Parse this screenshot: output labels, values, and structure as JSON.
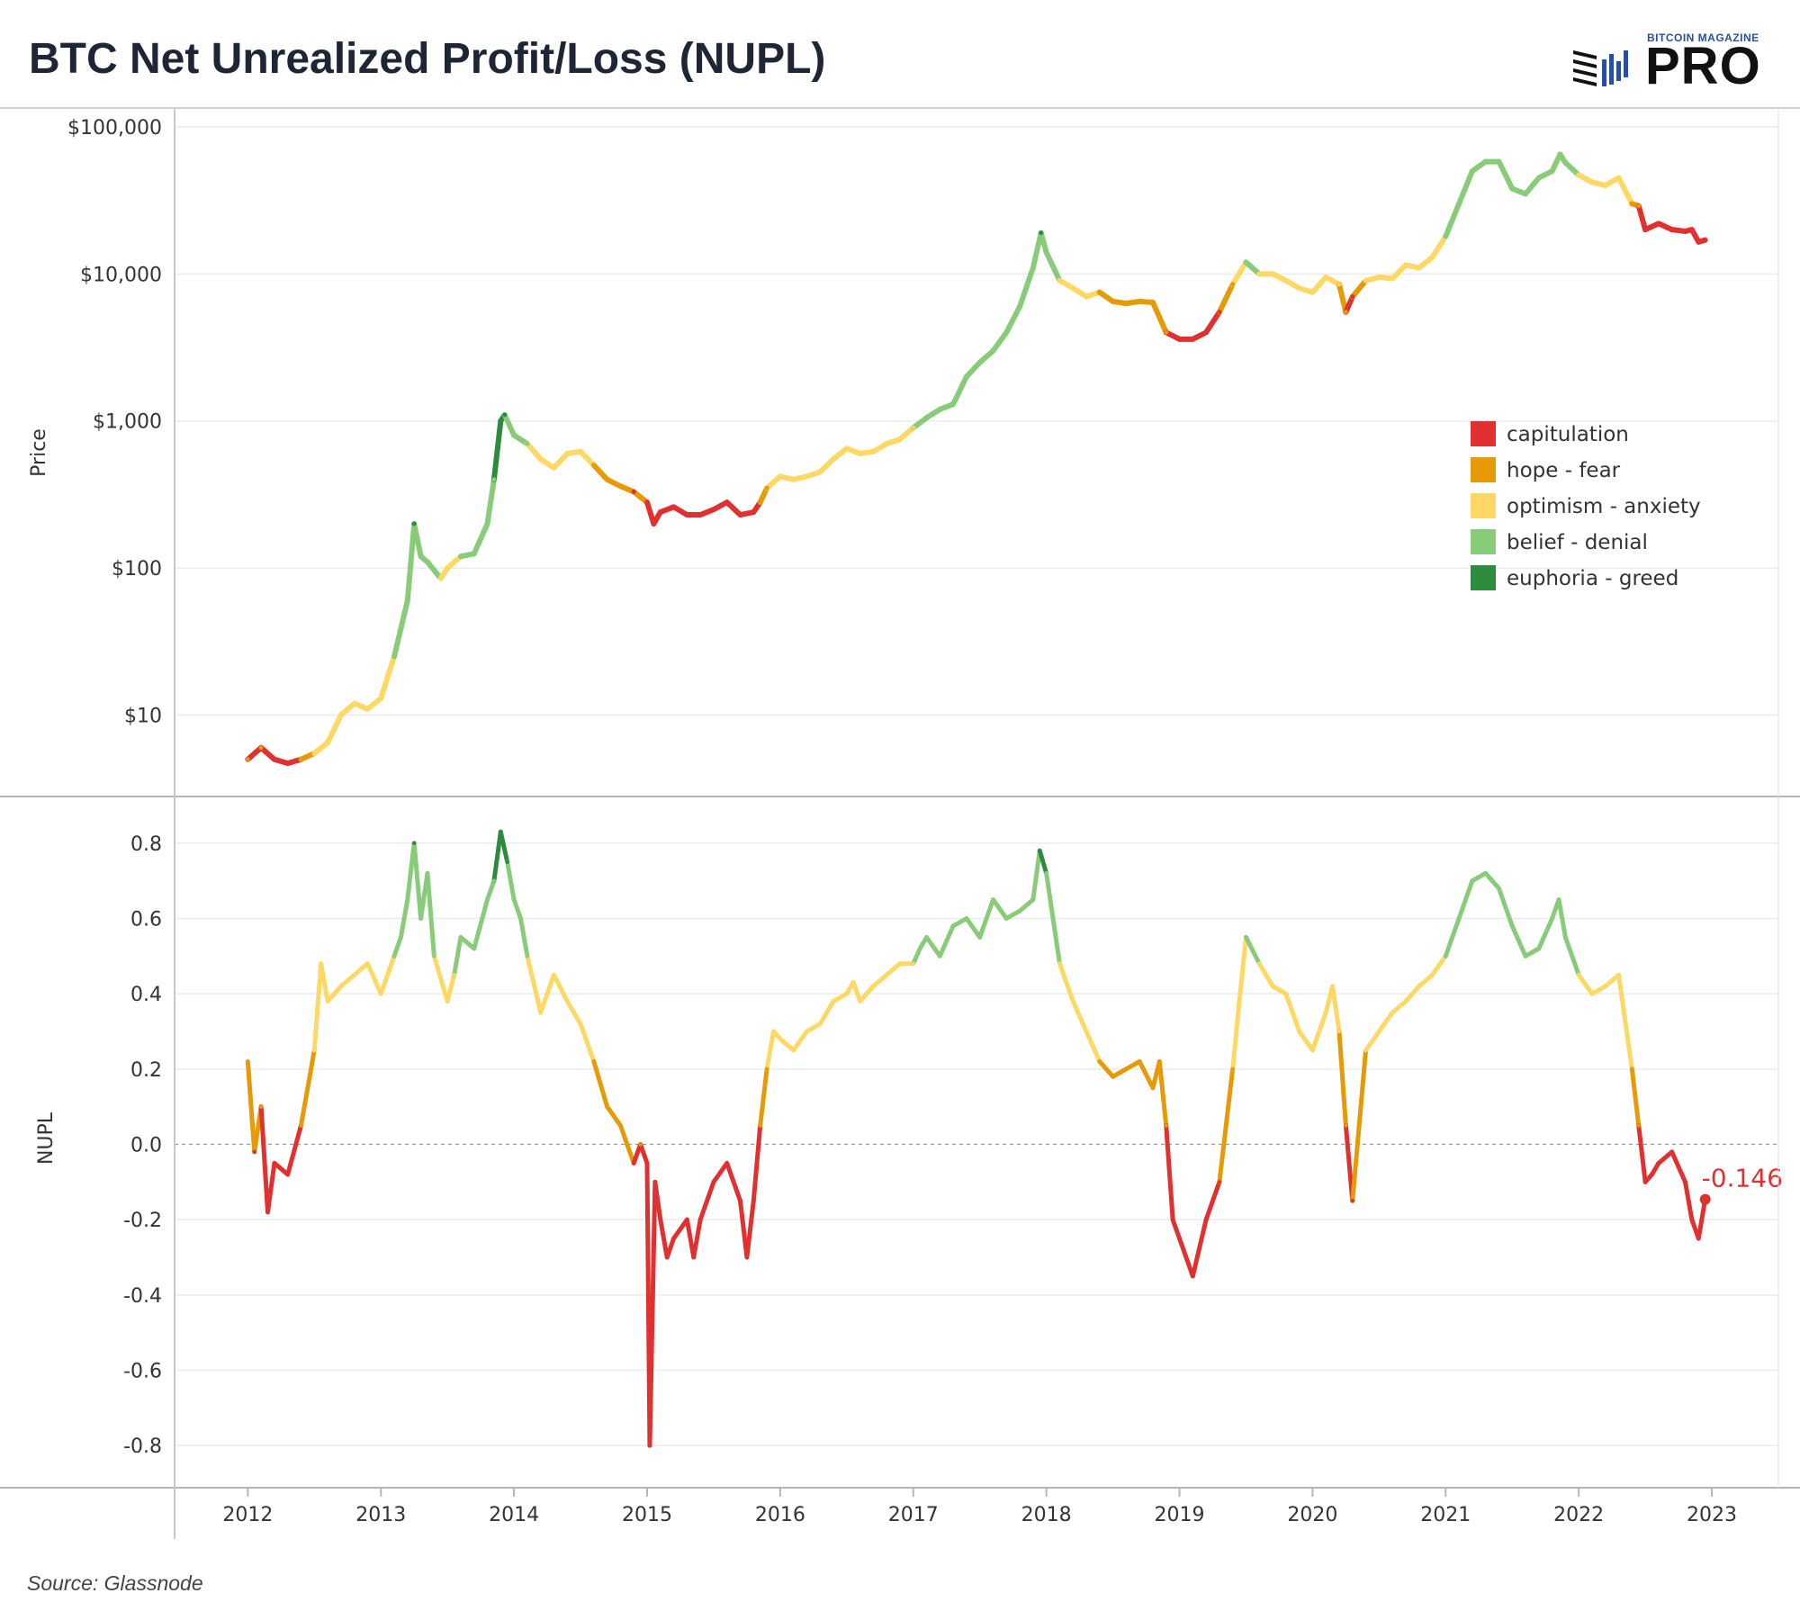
{
  "title": "BTC Net Unrealized Profit/Loss (NUPL)",
  "logo": {
    "small": "BITCOIN MAGAZINE",
    "big": "PRO"
  },
  "source": "Source: Glassnode",
  "colors": {
    "capitulation": "#e03030",
    "hope-fear": "#e59a06",
    "optimism-anxiety": "#fdd865",
    "belief-denial": "#88cc7a",
    "euphoria-greed": "#2e8b3e"
  },
  "chart_data": [
    {
      "type": "line",
      "ylabel": "Price",
      "yscale": "log",
      "ylim": [
        3,
        120000
      ],
      "y_ticks": [
        10,
        100,
        1000,
        10000,
        100000
      ],
      "y_tick_labels": [
        "$10",
        "$100",
        "$1,000",
        "$10,000",
        "$100,000"
      ],
      "legend_position": "right",
      "legend": [
        "capitulation",
        "hope - fear",
        "optimism - anxiety",
        "belief - denial",
        "euphoria - greed"
      ],
      "x_ticks": [
        "2012",
        "2013",
        "2014",
        "2015",
        "2016",
        "2017",
        "2018",
        "2019",
        "2020",
        "2021",
        "2022",
        "2023"
      ],
      "series": [
        {
          "x": [
            2012.0,
            2012.1,
            2012.2,
            2012.3,
            2012.4,
            2012.5,
            2012.6,
            2012.7,
            2012.8,
            2012.9,
            2013.0,
            2013.1,
            2013.2,
            2013.25,
            2013.3,
            2013.35,
            2013.45,
            2013.5,
            2013.6,
            2013.7,
            2013.8,
            2013.85,
            2013.9,
            2013.93,
            2014.0,
            2014.1,
            2014.2,
            2014.3,
            2014.4,
            2014.5,
            2014.6,
            2014.7,
            2014.8,
            2014.9,
            2015.0,
            2015.05,
            2015.1,
            2015.2,
            2015.3,
            2015.4,
            2015.5,
            2015.6,
            2015.7,
            2015.8,
            2015.85,
            2015.9,
            2016.0,
            2016.1,
            2016.2,
            2016.3,
            2016.4,
            2016.5,
            2016.6,
            2016.7,
            2016.8,
            2016.9,
            2017.0,
            2017.1,
            2017.2,
            2017.3,
            2017.4,
            2017.5,
            2017.6,
            2017.7,
            2017.8,
            2017.9,
            2017.96,
            2018.0,
            2018.1,
            2018.2,
            2018.3,
            2018.4,
            2018.5,
            2018.6,
            2018.7,
            2018.8,
            2018.9,
            2019.0,
            2019.1,
            2019.2,
            2019.3,
            2019.4,
            2019.5,
            2019.6,
            2019.7,
            2019.8,
            2019.9,
            2020.0,
            2020.1,
            2020.2,
            2020.25,
            2020.3,
            2020.4,
            2020.5,
            2020.6,
            2020.7,
            2020.8,
            2020.9,
            2021.0,
            2021.1,
            2021.2,
            2021.3,
            2021.4,
            2021.5,
            2021.6,
            2021.7,
            2021.8,
            2021.86,
            2021.9,
            2022.0,
            2022.1,
            2022.2,
            2022.3,
            2022.4,
            2022.45,
            2022.5,
            2022.6,
            2022.7,
            2022.8,
            2022.85,
            2022.9,
            2022.95
          ],
          "y": [
            5,
            6,
            5,
            4.7,
            5,
            5.5,
            6.5,
            10,
            12,
            11,
            13,
            25,
            60,
            200,
            120,
            110,
            85,
            100,
            120,
            125,
            200,
            400,
            1000,
            1100,
            800,
            700,
            550,
            480,
            600,
            620,
            500,
            400,
            360,
            330,
            280,
            200,
            240,
            260,
            230,
            230,
            250,
            280,
            230,
            240,
            280,
            350,
            420,
            400,
            420,
            450,
            550,
            650,
            600,
            620,
            700,
            750,
            900,
            1050,
            1200,
            1300,
            2000,
            2500,
            3000,
            4000,
            6000,
            11000,
            19000,
            14000,
            9000,
            8000,
            7000,
            7500,
            6500,
            6300,
            6500,
            6400,
            4000,
            3600,
            3600,
            4000,
            5500,
            8500,
            12000,
            10000,
            10000,
            9000,
            8000,
            7500,
            9500,
            8500,
            5500,
            7000,
            9000,
            9500,
            9300,
            11500,
            11000,
            13000,
            18000,
            30000,
            50000,
            58000,
            58000,
            38000,
            35000,
            45000,
            50000,
            65000,
            57000,
            47000,
            42000,
            40000,
            45000,
            30000,
            29000,
            20000,
            22000,
            20000,
            19500,
            20000,
            16500,
            17000
          ]
        }
      ]
    },
    {
      "type": "line",
      "ylabel": "NUPL",
      "ylim": [
        -0.9,
        0.9
      ],
      "y_ticks": [
        -0.8,
        -0.6,
        -0.4,
        -0.2,
        0.0,
        0.2,
        0.4,
        0.6,
        0.8
      ],
      "y_tick_labels": [
        "-0.8",
        "-0.6",
        "-0.4",
        "-0.2",
        "0.0",
        "0.2",
        "0.4",
        "0.6",
        "0.8"
      ],
      "x_ticks": [
        "2012",
        "2013",
        "2014",
        "2015",
        "2016",
        "2017",
        "2018",
        "2019",
        "2020",
        "2021",
        "2022",
        "2023"
      ],
      "annotation": "-0.146",
      "series": [
        {
          "x": [
            2012.0,
            2012.05,
            2012.1,
            2012.15,
            2012.2,
            2012.3,
            2012.4,
            2012.5,
            2012.55,
            2012.6,
            2012.7,
            2012.8,
            2012.9,
            2013.0,
            2013.1,
            2013.15,
            2013.2,
            2013.25,
            2013.3,
            2013.35,
            2013.4,
            2013.5,
            2013.55,
            2013.6,
            2013.7,
            2013.8,
            2013.85,
            2013.9,
            2013.95,
            2014.0,
            2014.05,
            2014.1,
            2014.2,
            2014.25,
            2014.3,
            2014.4,
            2014.5,
            2014.6,
            2014.7,
            2014.8,
            2014.9,
            2014.95,
            2015.0,
            2015.02,
            2015.04,
            2015.06,
            2015.1,
            2015.15,
            2015.2,
            2015.3,
            2015.35,
            2015.4,
            2015.5,
            2015.6,
            2015.7,
            2015.75,
            2015.8,
            2015.85,
            2015.9,
            2015.95,
            2016.0,
            2016.1,
            2016.2,
            2016.3,
            2016.4,
            2016.5,
            2016.55,
            2016.6,
            2016.7,
            2016.8,
            2016.9,
            2017.0,
            2017.05,
            2017.1,
            2017.2,
            2017.3,
            2017.4,
            2017.5,
            2017.55,
            2017.6,
            2017.7,
            2017.8,
            2017.9,
            2017.95,
            2018.0,
            2018.05,
            2018.1,
            2018.2,
            2018.3,
            2018.4,
            2018.5,
            2018.6,
            2018.7,
            2018.8,
            2018.85,
            2018.9,
            2018.95,
            2019.0,
            2019.1,
            2019.2,
            2019.3,
            2019.4,
            2019.45,
            2019.5,
            2019.6,
            2019.7,
            2019.8,
            2019.9,
            2020.0,
            2020.1,
            2020.15,
            2020.2,
            2020.25,
            2020.3,
            2020.4,
            2020.5,
            2020.6,
            2020.7,
            2020.8,
            2020.9,
            2021.0,
            2021.1,
            2021.2,
            2021.3,
            2021.4,
            2021.5,
            2021.6,
            2021.7,
            2021.8,
            2021.85,
            2021.9,
            2022.0,
            2022.1,
            2022.2,
            2022.3,
            2022.4,
            2022.45,
            2022.5,
            2022.55,
            2022.6,
            2022.7,
            2022.8,
            2022.85,
            2022.9,
            2022.95
          ],
          "y": [
            0.22,
            -0.02,
            0.1,
            -0.18,
            -0.05,
            -0.08,
            0.05,
            0.25,
            0.48,
            0.38,
            0.42,
            0.45,
            0.48,
            0.4,
            0.5,
            0.55,
            0.65,
            0.8,
            0.6,
            0.72,
            0.5,
            0.38,
            0.45,
            0.55,
            0.52,
            0.65,
            0.7,
            0.83,
            0.75,
            0.65,
            0.6,
            0.5,
            0.35,
            0.4,
            0.45,
            0.38,
            0.32,
            0.22,
            0.1,
            0.05,
            -0.05,
            0.0,
            -0.05,
            -0.8,
            -0.45,
            -0.1,
            -0.2,
            -0.3,
            -0.25,
            -0.2,
            -0.3,
            -0.2,
            -0.1,
            -0.05,
            -0.15,
            -0.3,
            -0.15,
            0.05,
            0.2,
            0.3,
            0.28,
            0.25,
            0.3,
            0.32,
            0.38,
            0.4,
            0.43,
            0.38,
            0.42,
            0.45,
            0.48,
            0.48,
            0.52,
            0.55,
            0.5,
            0.58,
            0.6,
            0.55,
            0.6,
            0.65,
            0.6,
            0.62,
            0.65,
            0.78,
            0.72,
            0.6,
            0.48,
            0.38,
            0.3,
            0.22,
            0.18,
            0.2,
            0.22,
            0.15,
            0.22,
            0.05,
            -0.2,
            -0.25,
            -0.35,
            -0.2,
            -0.1,
            0.2,
            0.38,
            0.55,
            0.48,
            0.42,
            0.4,
            0.3,
            0.25,
            0.35,
            0.42,
            0.3,
            0.05,
            -0.15,
            0.25,
            0.3,
            0.35,
            0.38,
            0.42,
            0.45,
            0.5,
            0.6,
            0.7,
            0.72,
            0.68,
            0.58,
            0.5,
            0.52,
            0.6,
            0.65,
            0.55,
            0.45,
            0.4,
            0.42,
            0.45,
            0.2,
            0.05,
            -0.1,
            -0.08,
            -0.05,
            -0.02,
            -0.1,
            -0.2,
            -0.25,
            -0.146
          ]
        }
      ]
    }
  ]
}
